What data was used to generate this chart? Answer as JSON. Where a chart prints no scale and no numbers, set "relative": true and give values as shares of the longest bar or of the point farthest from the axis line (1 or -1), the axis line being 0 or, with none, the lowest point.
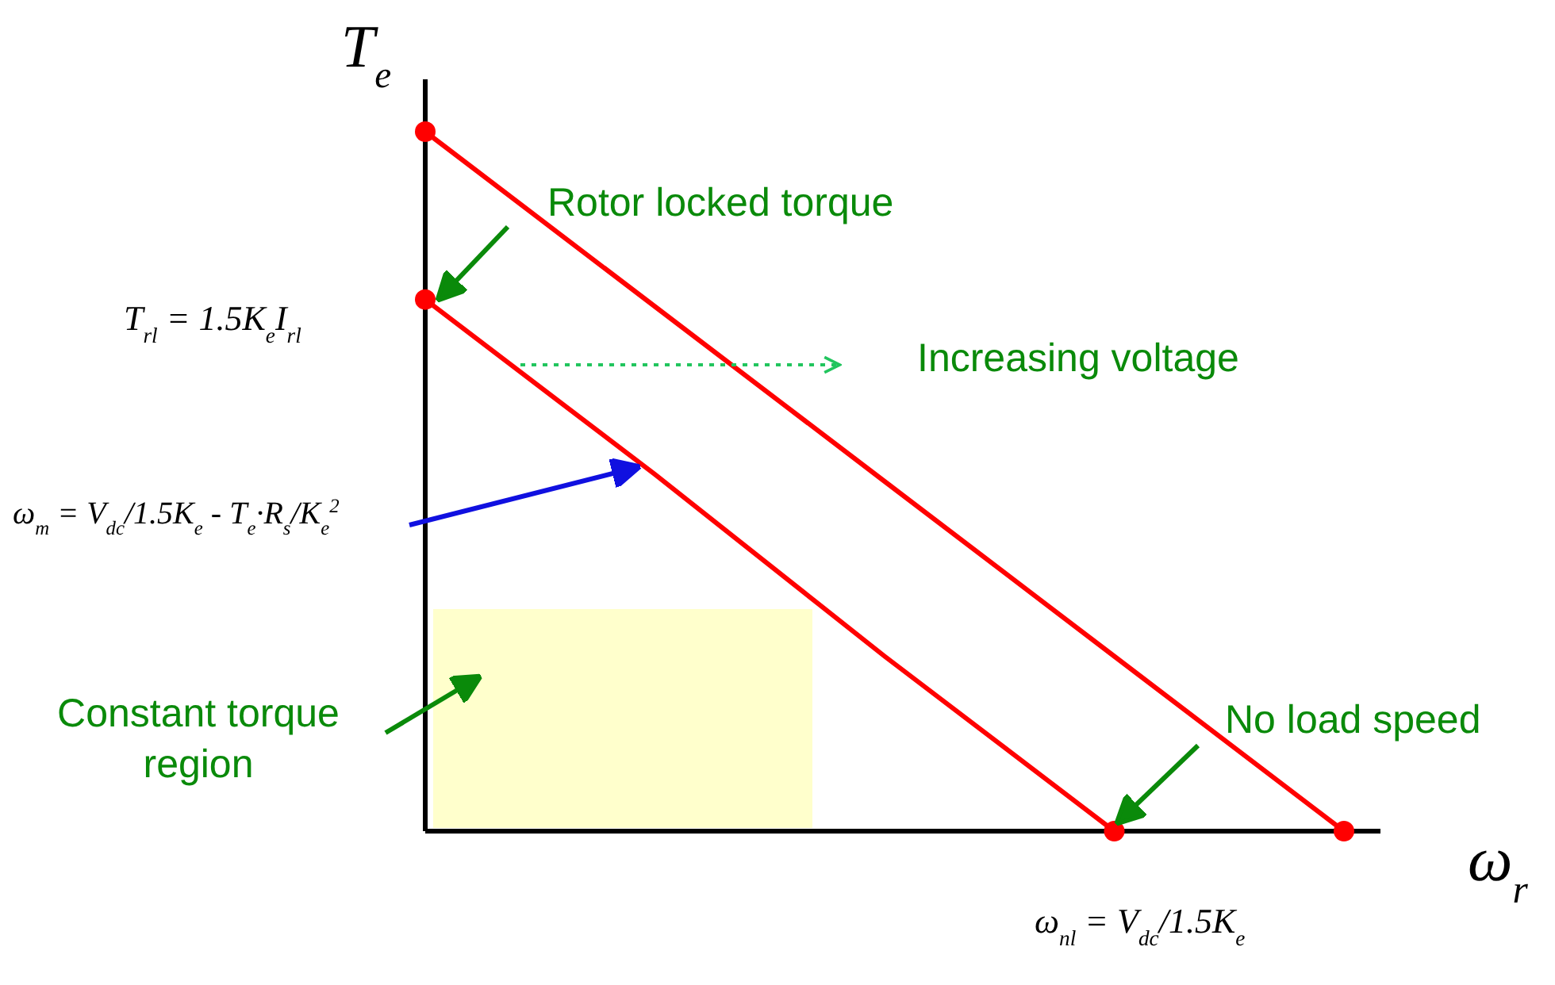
{
  "chart_data": {
    "type": "line",
    "relative": true,
    "xlabel": "ω$_{r}$",
    "ylabel": "T$_{e}$",
    "line_style": "solid",
    "categories": [
      null,
      null,
      null,
      null,
      null
    ],
    "series": [
      {
        "color": "#ff0000",
        "values": [
          0.76,
          0.51,
          0.25,
          0,
          null
        ]
      },
      {
        "color": "#ff0000",
        "values": [
          1,
          0.75,
          0.5,
          0.25,
          0
        ]
      }
    ],
    "annotations": [
      "Rotor locked torque",
      "Increasing voltage",
      "ω$_{m}$ = V$_{dc}$/1.5K$_{e}$ - T$_{e}$·R$_{s}$/K$_{e}$$^{2}$",
      "No load speed",
      "T$_{rl}$ = 1.5K$_{e}$I$_{rl}$",
      "ω$_{nl}$ = V$_{dc}$/1.5K$_{e}$",
      "Constant torque region"
    ]
  }
}
